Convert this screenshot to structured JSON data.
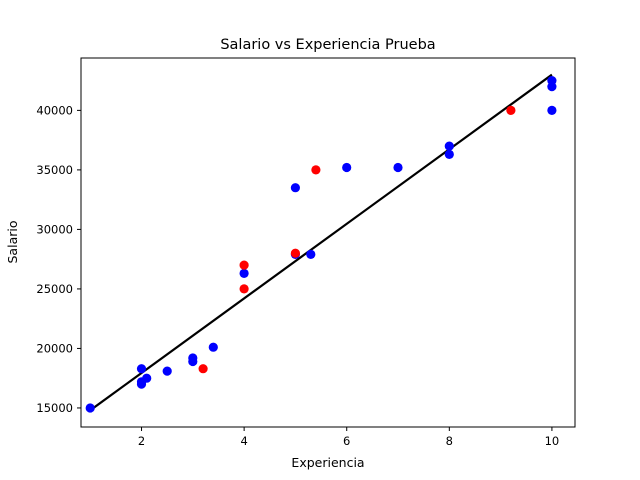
{
  "chart_data": {
    "type": "scatter",
    "title": "Salario vs Experiencia Prueba",
    "xlabel": "Experiencia",
    "ylabel": "Salario",
    "xlim": [
      0.82,
      10.45
    ],
    "ylim": [
      13400,
      44400
    ],
    "xticks": [
      2,
      4,
      6,
      8,
      10
    ],
    "yticks": [
      15000,
      20000,
      25000,
      30000,
      35000,
      40000
    ],
    "grid": false,
    "series": [
      {
        "kind": "scatter",
        "color": "#0000ff",
        "points": [
          [
            1.0,
            15000
          ],
          [
            2.0,
            18300
          ],
          [
            2.0,
            17200
          ],
          [
            2.0,
            17000
          ],
          [
            2.1,
            17500
          ],
          [
            2.5,
            18100
          ],
          [
            3.0,
            19200
          ],
          [
            3.0,
            18900
          ],
          [
            3.4,
            20100
          ],
          [
            4.0,
            26300
          ],
          [
            5.0,
            33500
          ],
          [
            5.0,
            27900
          ],
          [
            5.3,
            27900
          ],
          [
            6.0,
            35200
          ],
          [
            7.0,
            35200
          ],
          [
            8.0,
            37000
          ],
          [
            8.0,
            36300
          ],
          [
            10.0,
            42500
          ],
          [
            10.0,
            42000
          ],
          [
            10.0,
            40000
          ]
        ]
      },
      {
        "kind": "scatter",
        "color": "#ff0000",
        "points": [
          [
            3.2,
            18300
          ],
          [
            4.0,
            27000
          ],
          [
            4.0,
            25000
          ],
          [
            5.0,
            28000
          ],
          [
            5.4,
            35000
          ],
          [
            9.2,
            40000
          ]
        ]
      },
      {
        "kind": "line",
        "color": "#000000",
        "points": [
          [
            1.0,
            14800
          ],
          [
            10.0,
            43000
          ]
        ]
      }
    ]
  }
}
